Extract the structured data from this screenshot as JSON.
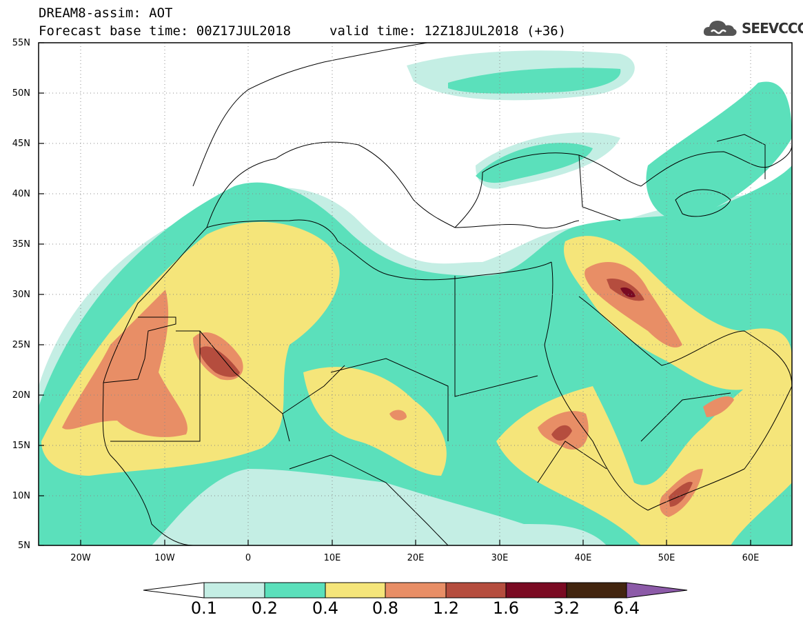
{
  "header": {
    "title_line1": "DREAM8-assim: AOT",
    "title_line2": "Forecast base time: 00Z17JUL2018",
    "valid_time": "valid time: 12Z18JUL2018 (+36)",
    "logo_text": "SEEVCCC"
  },
  "map": {
    "lat_labels": [
      "55N",
      "50N",
      "45N",
      "40N",
      "35N",
      "30N",
      "25N",
      "20N",
      "15N",
      "10N",
      "5N"
    ],
    "lon_labels": [
      "20W",
      "10W",
      "0",
      "10E",
      "20E",
      "30E",
      "40E",
      "50E",
      "60E"
    ],
    "colorbar": {
      "labels": [
        "0.1",
        "0.2",
        "0.4",
        "0.8",
        "1.2",
        "1.6",
        "3.2",
        "6.4"
      ],
      "colors": [
        "#ffffff",
        "#c4eee4",
        "#5be0bb",
        "#f5e57a",
        "#e88e66",
        "#b54d3e",
        "#7a0a22",
        "#42250f",
        "#8c5aa8"
      ]
    },
    "levels": {
      "c1": "#c4eee4",
      "c2": "#5be0bb",
      "c3": "#f5e57a",
      "c4": "#e88e66",
      "c5": "#b54d3e",
      "c6": "#7a0a22"
    }
  }
}
